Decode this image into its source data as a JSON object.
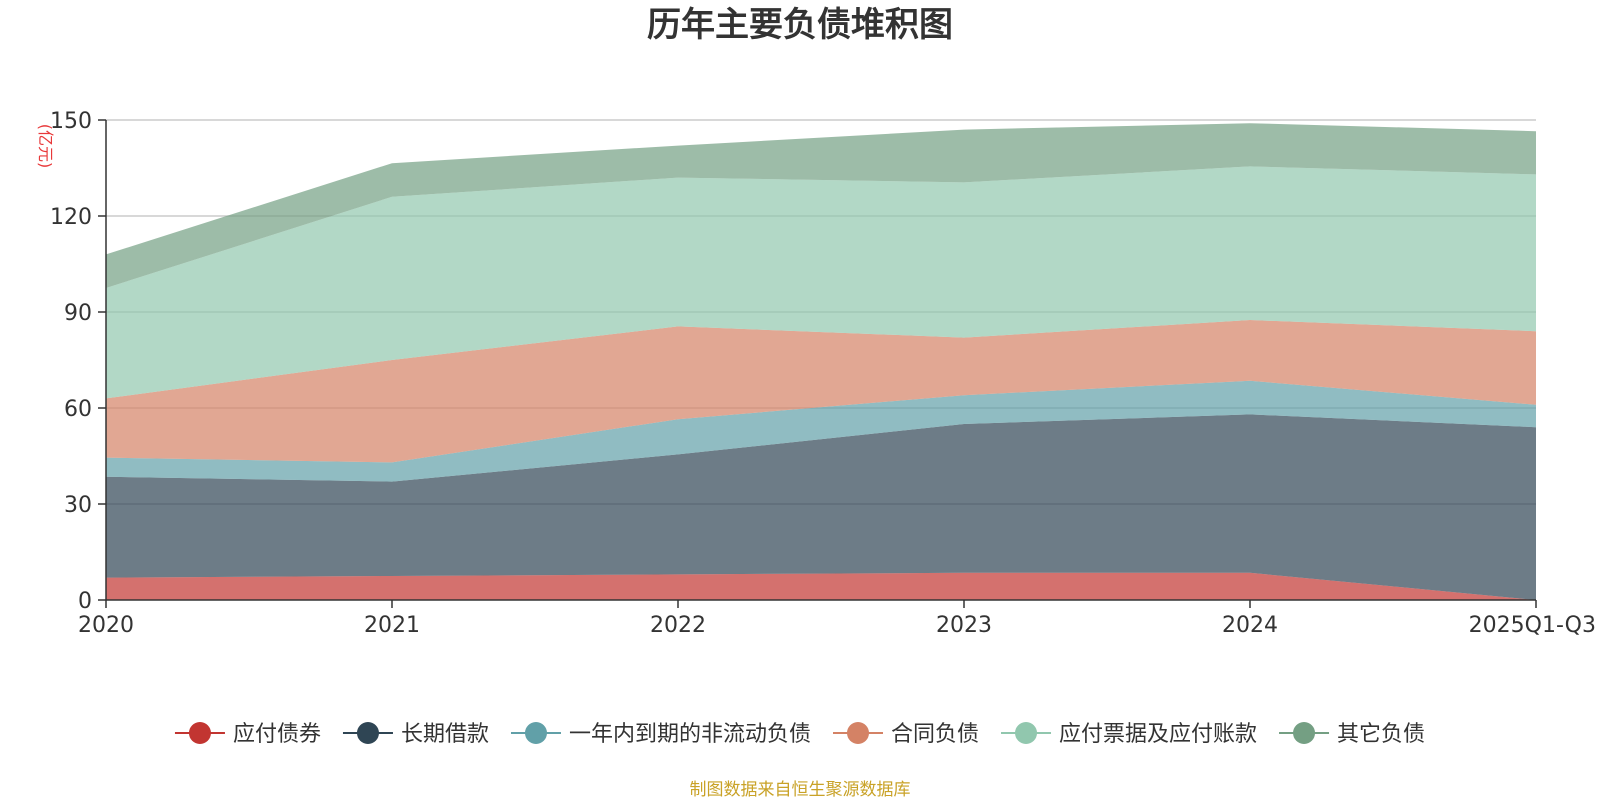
{
  "chart_data": {
    "type": "area",
    "stacked": true,
    "title": "历年主要负债堆积图",
    "unit": "(亿元)",
    "categories": [
      "2020",
      "2021",
      "2022",
      "2023",
      "2024",
      "2025Q1-Q3"
    ],
    "ylim": [
      0,
      150
    ],
    "yticks": [
      0,
      30,
      60,
      90,
      120,
      150
    ],
    "grid": true,
    "legend_position": "bottom",
    "series": [
      {
        "name": "应付债券",
        "color": "#c23531",
        "values": [
          7,
          7.5,
          8,
          8.5,
          8.5,
          0
        ]
      },
      {
        "name": "长期借款",
        "color": "#2f4554",
        "values": [
          31.5,
          29.5,
          37.5,
          46.5,
          49.5,
          54
        ]
      },
      {
        "name": "一年内到期的非流动负债",
        "color": "#61a0a8",
        "values": [
          6,
          6,
          11,
          9,
          10.5,
          7
        ]
      },
      {
        "name": "合同负债",
        "color": "#d48265",
        "values": [
          18.5,
          32,
          29,
          18,
          19,
          23
        ]
      },
      {
        "name": "应付票据及应付账款",
        "color": "#91c7ae",
        "values": [
          34.5,
          51,
          46.5,
          48.5,
          48,
          49
        ]
      },
      {
        "name": "其它负债",
        "color": "#749f83",
        "values": [
          10.5,
          10.5,
          10,
          16.5,
          13.5,
          13.5
        ]
      }
    ]
  },
  "footer": {
    "source": "制图数据来自恒生聚源数据库"
  }
}
